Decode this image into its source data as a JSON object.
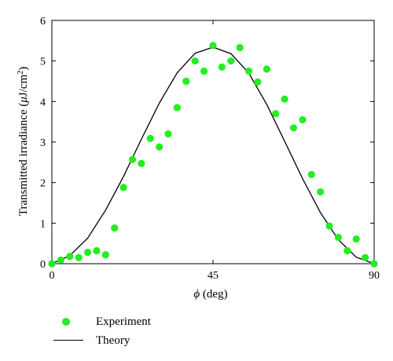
{
  "chart_data": {
    "type": "line+scatter",
    "xlabel_symbol": "ϕ",
    "xlabel_unit": "(deg)",
    "ylabel_text": "Transmitted irradiance (",
    "ylabel_mu": "μ",
    "ylabel_unit": "J/cm",
    "ylabel_sup": "2",
    "ylabel_close": ")",
    "xlim": [
      0,
      90
    ],
    "ylim": [
      0,
      6
    ],
    "xticks": [
      0,
      45,
      90
    ],
    "yticks": [
      0,
      1,
      2,
      3,
      4,
      5,
      6
    ],
    "grid": false,
    "legend_placement": "below",
    "series": [
      {
        "name": "Experiment",
        "kind": "scatter",
        "color": "#22ee22",
        "x": [
          0,
          2.5,
          5,
          7.5,
          10,
          12.5,
          15,
          17.5,
          20,
          22.5,
          25,
          27.5,
          30,
          32.5,
          35,
          37.5,
          40,
          42.5,
          45,
          47.5,
          50,
          52.5,
          55,
          57.5,
          60,
          62.5,
          65,
          67.5,
          70,
          72.5,
          75,
          77.5,
          80,
          82.5,
          85,
          87.5,
          90
        ],
        "y": [
          0.0,
          0.09,
          0.18,
          0.15,
          0.28,
          0.32,
          0.22,
          0.88,
          1.88,
          2.57,
          2.47,
          3.09,
          2.88,
          3.2,
          3.85,
          4.5,
          5.0,
          4.75,
          5.38,
          4.85,
          5.0,
          5.33,
          4.75,
          4.48,
          4.8,
          3.7,
          4.06,
          3.35,
          3.55,
          2.2,
          1.77,
          0.93,
          0.65,
          0.32,
          0.61,
          0.15,
          0.0
        ]
      },
      {
        "name": "Theory",
        "kind": "line",
        "color": "#000000",
        "x": [
          0,
          5,
          10,
          15,
          20,
          25,
          30,
          35,
          40,
          45,
          50,
          55,
          60,
          65,
          70,
          75,
          80,
          85,
          90
        ],
        "y": [
          0.0,
          0.2,
          0.63,
          1.32,
          2.15,
          3.07,
          3.96,
          4.71,
          5.19,
          5.34,
          5.18,
          4.7,
          3.93,
          3.02,
          2.1,
          1.26,
          0.59,
          0.16,
          0.0
        ]
      }
    ]
  }
}
